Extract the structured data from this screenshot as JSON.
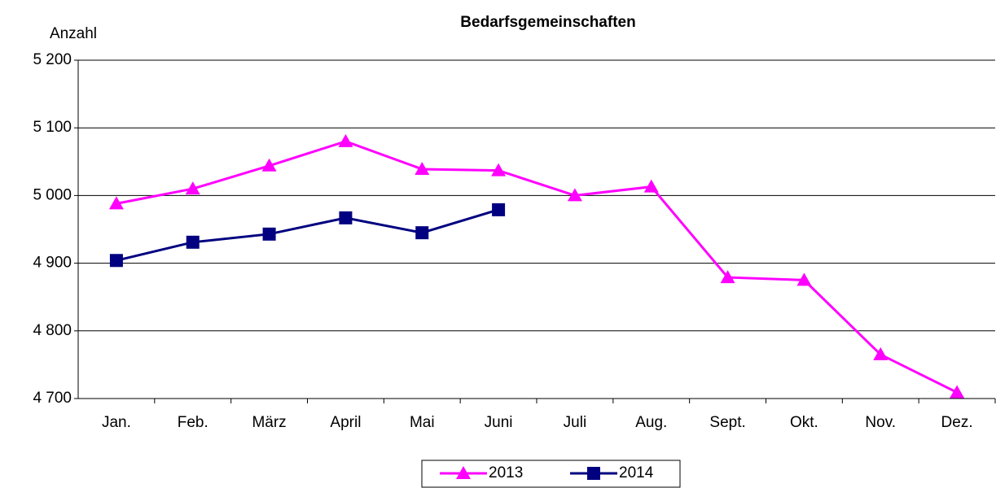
{
  "chart_data": {
    "type": "line",
    "title": "Bedarfsgemeinschaften",
    "y_label": "Anzahl",
    "categories": [
      "Jan.",
      "Feb.",
      "März",
      "April",
      "Mai",
      "Juni",
      "Juli",
      "Aug.",
      "Sept.",
      "Okt.",
      "Nov.",
      "Dez."
    ],
    "series": [
      {
        "name": "2013",
        "color": "#ff00ff",
        "marker": "triangle",
        "values": [
          4988,
          5010,
          5044,
          5080,
          5039,
          5037,
          5000,
          5013,
          4879,
          4875,
          4765,
          4709
        ]
      },
      {
        "name": "2014",
        "color": "#000080",
        "marker": "square",
        "values": [
          4904,
          4931,
          4943,
          4967,
          4945,
          4979,
          null,
          null,
          null,
          null,
          null,
          null
        ]
      }
    ],
    "ylim": [
      4700,
      5200
    ],
    "yticks": [
      {
        "value": 4700,
        "label": "4 700"
      },
      {
        "value": 4800,
        "label": "4 800"
      },
      {
        "value": 4900,
        "label": "4 900"
      },
      {
        "value": 5000,
        "label": "5 000"
      },
      {
        "value": 5100,
        "label": "5 100"
      },
      {
        "value": 5200,
        "label": "5 200"
      }
    ],
    "grid": true,
    "legend": "bottom"
  }
}
